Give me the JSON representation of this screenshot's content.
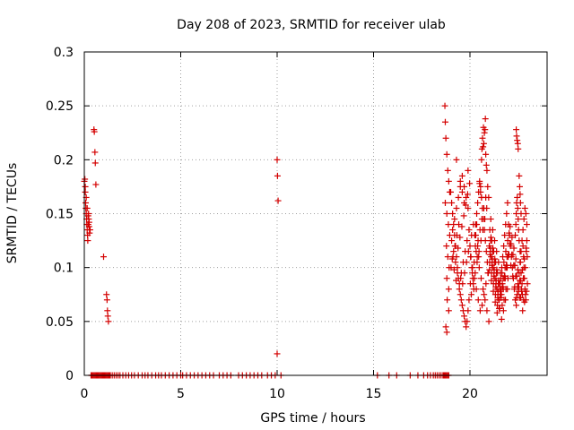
{
  "chart_data": {
    "type": "scatter",
    "title": "Day 208 of 2023, SRMTID for receiver ulab",
    "xlabel": "GPS time / hours",
    "ylabel": "SRMTID / TECUs",
    "xlim": [
      0,
      24
    ],
    "ylim": [
      0,
      0.3
    ],
    "xticks": [
      0,
      5,
      10,
      15,
      20
    ],
    "yticks": [
      0,
      0.05,
      0.1,
      0.15,
      0.2,
      0.25,
      0.3
    ],
    "xtick_labels": [
      "0",
      "5",
      "10",
      "15",
      "20"
    ],
    "ytick_labels": [
      "0",
      "0.05",
      "0.1",
      "0.15",
      "0.2",
      "0.25",
      "0.3"
    ],
    "grid": true,
    "marker": "plus",
    "series_color": "#d40000",
    "series": [
      {
        "name": "SRMTID",
        "x": [
          0.0,
          0.03,
          0.05,
          0.07,
          0.08,
          0.1,
          0.12,
          0.13,
          0.15,
          0.17,
          0.18,
          0.2,
          0.22,
          0.23,
          0.25,
          0.27,
          0.05,
          0.1,
          0.15,
          0.2,
          0.25,
          0.3,
          0.5,
          0.52,
          0.55,
          0.57,
          0.6,
          1.0,
          1.15,
          1.18,
          1.2,
          1.22,
          1.25,
          10.0,
          10.02,
          10.05,
          10.0,
          18.7,
          18.72,
          18.75,
          18.8,
          18.85,
          18.9,
          18.95,
          18.72,
          18.8,
          18.88,
          18.95,
          18.78,
          18.85,
          18.92,
          18.8,
          18.9,
          18.82,
          18.9,
          18.75,
          18.8,
          19.0,
          19.05,
          19.1,
          19.15,
          19.2,
          19.25,
          19.3,
          19.35,
          19.4,
          19.45,
          19.5,
          19.55,
          19.6,
          19.65,
          19.7,
          19.75,
          19.8,
          19.85,
          19.9,
          19.95,
          19.05,
          19.1,
          19.2,
          19.3,
          19.4,
          19.5,
          19.6,
          19.7,
          19.8,
          19.9,
          19.15,
          19.25,
          19.35,
          19.45,
          19.55,
          19.65,
          19.75,
          19.85,
          19.95,
          19.08,
          19.18,
          19.28,
          19.38,
          19.48,
          19.58,
          19.68,
          19.78,
          19.88,
          19.98,
          19.02,
          19.12,
          19.22,
          19.32,
          19.42,
          19.52,
          19.62,
          19.72,
          19.82,
          19.92,
          19.3,
          19.5,
          19.6,
          19.7,
          19.9,
          20.0,
          20.05,
          20.1,
          20.15,
          20.2,
          20.25,
          20.3,
          20.35,
          20.4,
          20.45,
          20.5,
          20.55,
          20.6,
          20.65,
          20.7,
          20.75,
          20.8,
          20.85,
          20.9,
          20.95,
          20.02,
          20.12,
          20.22,
          20.32,
          20.42,
          20.52,
          20.62,
          20.72,
          20.82,
          20.92,
          20.07,
          20.17,
          20.27,
          20.37,
          20.47,
          20.57,
          20.67,
          20.77,
          20.87,
          20.97,
          20.03,
          20.13,
          20.23,
          20.33,
          20.43,
          20.53,
          20.63,
          20.73,
          20.83,
          20.93,
          20.08,
          20.18,
          20.28,
          20.38,
          20.48,
          20.58,
          20.68,
          20.78,
          20.88,
          20.98,
          20.6,
          20.62,
          20.65,
          20.7,
          20.72,
          20.75,
          20.8,
          20.82,
          20.85,
          20.68,
          20.78,
          20.88,
          20.5,
          20.55,
          20.6,
          20.4,
          20.45,
          20.3,
          20.35,
          21.0,
          21.05,
          21.1,
          21.15,
          21.2,
          21.25,
          21.3,
          21.35,
          21.4,
          21.45,
          21.5,
          21.55,
          21.6,
          21.65,
          21.7,
          21.75,
          21.8,
          21.85,
          21.9,
          21.95,
          21.02,
          21.12,
          21.22,
          21.32,
          21.42,
          21.52,
          21.62,
          21.72,
          21.82,
          21.92,
          21.07,
          21.17,
          21.27,
          21.37,
          21.47,
          21.57,
          21.67,
          21.77,
          21.87,
          21.97,
          21.03,
          21.13,
          21.23,
          21.33,
          21.43,
          21.53,
          21.63,
          21.73,
          21.83,
          21.93,
          21.08,
          21.18,
          21.28,
          21.38,
          21.48,
          21.58,
          21.68,
          21.78,
          21.88,
          21.98,
          21.01,
          21.11,
          21.21,
          21.31,
          21.41,
          21.51,
          21.61,
          21.71,
          21.81,
          21.91,
          21.04,
          21.14,
          21.24,
          21.34,
          21.44,
          21.54,
          21.64,
          21.74,
          21.84,
          21.94,
          21.06,
          21.16,
          21.26,
          21.36,
          21.46,
          21.56,
          21.66,
          21.76,
          21.86,
          21.96,
          21.09,
          21.19,
          21.29,
          21.39,
          21.49,
          21.59,
          21.69,
          21.79,
          21.89,
          21.99,
          22.0,
          22.05,
          22.1,
          22.15,
          22.2,
          22.25,
          22.3,
          22.35,
          22.4,
          22.45,
          22.5,
          22.55,
          22.6,
          22.65,
          22.7,
          22.75,
          22.8,
          22.85,
          22.9,
          22.95,
          22.02,
          22.12,
          22.22,
          22.32,
          22.42,
          22.52,
          22.62,
          22.72,
          22.82,
          22.92,
          22.07,
          22.17,
          22.27,
          22.37,
          22.47,
          22.57,
          22.67,
          22.77,
          22.87,
          22.97,
          22.03,
          22.13,
          22.23,
          22.33,
          22.43,
          22.53,
          22.63,
          22.73,
          22.83,
          22.93,
          22.08,
          22.18,
          22.28,
          22.38,
          22.48,
          22.58,
          22.68,
          22.78,
          22.88,
          22.98,
          22.35,
          22.38,
          22.4,
          22.42,
          22.45,
          22.48,
          22.5,
          22.52,
          22.55,
          22.6,
          22.62,
          22.65,
          22.7,
          22.72,
          22.75,
          22.78,
          22.8,
          22.82,
          22.85,
          22.9,
          22.92,
          22.95,
          22.4,
          22.42,
          22.45,
          22.48,
          22.5,
          22.55,
          22.58,
          22.6,
          22.62,
          22.65
        ],
        "y": [
          0.18,
          0.182,
          0.17,
          0.16,
          0.155,
          0.15,
          0.145,
          0.14,
          0.135,
          0.13,
          0.125,
          0.14,
          0.15,
          0.145,
          0.138,
          0.132,
          0.175,
          0.165,
          0.155,
          0.148,
          0.142,
          0.135,
          0.228,
          0.226,
          0.207,
          0.197,
          0.177,
          0.11,
          0.075,
          0.07,
          0.06,
          0.055,
          0.05,
          0.2,
          0.185,
          0.162,
          0.02,
          0.25,
          0.235,
          0.22,
          0.205,
          0.19,
          0.18,
          0.17,
          0.16,
          0.15,
          0.14,
          0.13,
          0.12,
          0.11,
          0.1,
          0.09,
          0.08,
          0.07,
          0.06,
          0.045,
          0.04,
          0.17,
          0.16,
          0.15,
          0.14,
          0.13,
          0.12,
          0.11,
          0.1,
          0.09,
          0.08,
          0.075,
          0.07,
          0.065,
          0.06,
          0.055,
          0.05,
          0.045,
          0.05,
          0.06,
          0.07,
          0.125,
          0.135,
          0.145,
          0.155,
          0.165,
          0.175,
          0.185,
          0.175,
          0.165,
          0.155,
          0.115,
          0.105,
          0.095,
          0.085,
          0.095,
          0.105,
          0.115,
          0.125,
          0.135,
          0.108,
          0.098,
          0.088,
          0.118,
          0.128,
          0.138,
          0.148,
          0.158,
          0.168,
          0.178,
          0.1,
          0.11,
          0.12,
          0.13,
          0.14,
          0.09,
          0.085,
          0.095,
          0.105,
          0.115,
          0.2,
          0.18,
          0.17,
          0.16,
          0.19,
          0.12,
          0.11,
          0.1,
          0.09,
          0.08,
          0.13,
          0.14,
          0.15,
          0.16,
          0.17,
          0.18,
          0.175,
          0.165,
          0.155,
          0.145,
          0.135,
          0.125,
          0.115,
          0.105,
          0.095,
          0.085,
          0.095,
          0.105,
          0.115,
          0.125,
          0.135,
          0.145,
          0.155,
          0.165,
          0.175,
          0.075,
          0.085,
          0.095,
          0.105,
          0.115,
          0.125,
          0.135,
          0.145,
          0.155,
          0.165,
          0.11,
          0.1,
          0.09,
          0.08,
          0.07,
          0.06,
          0.065,
          0.075,
          0.085,
          0.095,
          0.13,
          0.14,
          0.12,
          0.11,
          0.1,
          0.09,
          0.08,
          0.07,
          0.06,
          0.05,
          0.2,
          0.21,
          0.22,
          0.23,
          0.215,
          0.225,
          0.238,
          0.205,
          0.195,
          0.212,
          0.228,
          0.19,
          0.178,
          0.17,
          0.165,
          0.12,
          0.11,
          0.13,
          0.14,
          0.12,
          0.115,
          0.11,
          0.105,
          0.1,
          0.095,
          0.09,
          0.085,
          0.08,
          0.075,
          0.07,
          0.08,
          0.09,
          0.1,
          0.11,
          0.12,
          0.13,
          0.14,
          0.15,
          0.16,
          0.105,
          0.095,
          0.085,
          0.075,
          0.065,
          0.07,
          0.08,
          0.09,
          0.1,
          0.11,
          0.125,
          0.115,
          0.105,
          0.095,
          0.085,
          0.075,
          0.065,
          0.07,
          0.08,
          0.09,
          0.135,
          0.125,
          0.115,
          0.105,
          0.095,
          0.085,
          0.075,
          0.08,
          0.09,
          0.1,
          0.145,
          0.135,
          0.125,
          0.115,
          0.105,
          0.095,
          0.085,
          0.09,
          0.1,
          0.11,
          0.098,
          0.088,
          0.078,
          0.068,
          0.058,
          0.062,
          0.072,
          0.082,
          0.092,
          0.102,
          0.112,
          0.102,
          0.092,
          0.082,
          0.072,
          0.062,
          0.052,
          0.06,
          0.07,
          0.08,
          0.118,
          0.108,
          0.098,
          0.088,
          0.078,
          0.085,
          0.095,
          0.105,
          0.115,
          0.125,
          0.128,
          0.118,
          0.108,
          0.098,
          0.088,
          0.078,
          0.082,
          0.092,
          0.102,
          0.112,
          0.14,
          0.13,
          0.12,
          0.11,
          0.1,
          0.09,
          0.08,
          0.07,
          0.065,
          0.075,
          0.085,
          0.095,
          0.105,
          0.115,
          0.125,
          0.135,
          0.145,
          0.155,
          0.15,
          0.14,
          0.112,
          0.102,
          0.092,
          0.082,
          0.072,
          0.078,
          0.088,
          0.098,
          0.108,
          0.118,
          0.122,
          0.112,
          0.102,
          0.092,
          0.082,
          0.072,
          0.08,
          0.09,
          0.1,
          0.11,
          0.132,
          0.122,
          0.112,
          0.102,
          0.092,
          0.082,
          0.072,
          0.06,
          0.068,
          0.078,
          0.138,
          0.128,
          0.118,
          0.108,
          0.098,
          0.088,
          0.078,
          0.07,
          0.075,
          0.085,
          0.13,
          0.14,
          0.15,
          0.16,
          0.165,
          0.155,
          0.145,
          0.135,
          0.125,
          0.115,
          0.105,
          0.095,
          0.085,
          0.075,
          0.12,
          0.11,
          0.1,
          0.09,
          0.08,
          0.07,
          0.115,
          0.125,
          0.228,
          0.222,
          0.218,
          0.215,
          0.21,
          0.185,
          0.175,
          0.168,
          0.16,
          0.15
        ],
        "zero_x": [
          0.35,
          0.4,
          0.45,
          0.5,
          0.55,
          0.6,
          0.65,
          0.7,
          0.75,
          0.8,
          0.85,
          0.9,
          0.95,
          1.0,
          1.05,
          1.1,
          1.15,
          1.2,
          1.25,
          1.3,
          1.35,
          1.45,
          1.55,
          1.65,
          1.75,
          1.85,
          2.0,
          2.15,
          2.3,
          2.45,
          2.6,
          2.8,
          3.0,
          3.15,
          3.3,
          3.5,
          3.7,
          3.85,
          4.0,
          4.2,
          4.4,
          4.6,
          4.8,
          5.0,
          5.1,
          5.3,
          5.5,
          5.7,
          5.9,
          6.1,
          6.3,
          6.5,
          6.7,
          7.0,
          7.2,
          7.4,
          7.6,
          8.0,
          8.2,
          8.4,
          8.6,
          8.8,
          9.0,
          9.2,
          9.5,
          9.7,
          9.9,
          10.2,
          15.2,
          15.8,
          16.2,
          16.9,
          17.3,
          17.6,
          17.8,
          17.95,
          18.1,
          18.2,
          18.3,
          18.4,
          18.5,
          18.6,
          18.65,
          18.7,
          18.75,
          18.8,
          18.85,
          18.9
        ]
      }
    ]
  }
}
